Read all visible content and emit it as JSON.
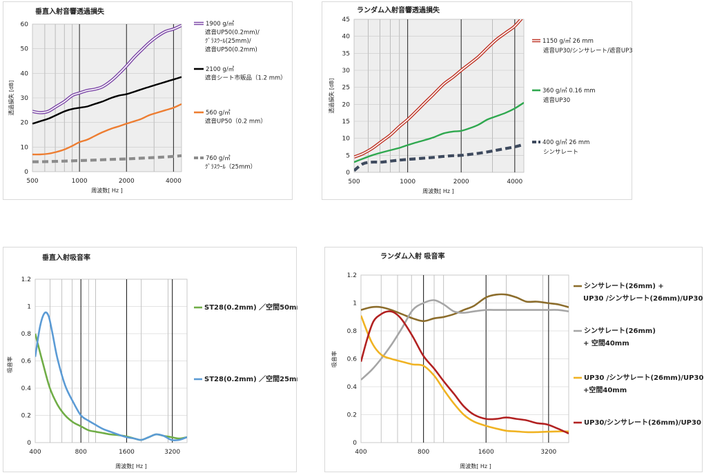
{
  "chart_data": [
    {
      "id": "c1",
      "type": "line",
      "title": "垂直入射音響透過損失",
      "xlabel": "周波数[ Hz ]",
      "ylabel": "透過損失 [dB]",
      "xscale": "log",
      "xlim": [
        500,
        4500
      ],
      "ylim": [
        0,
        60
      ],
      "xticks": [
        500,
        1000,
        2000,
        4000
      ],
      "xtick_labels": [
        "500",
        "1000",
        "2000",
        "4000"
      ],
      "yticks": [
        0,
        10,
        20,
        30,
        40,
        50,
        60
      ],
      "ytick_labels": [
        "0",
        "10",
        "20",
        "30",
        "40",
        "50",
        "60"
      ],
      "grid": true,
      "plot_background": "#eeeeee",
      "legend_position": "right",
      "series": [
        {
          "name": "1900 g/㎡",
          "legend_lines": [
            "1900 g/㎡",
            "遮音UP50(0.2mm)/",
            "ｸﾞﾗｽｳｰﾙ(25mm)/",
            "遮音UP50(0.2mm)"
          ],
          "color": "#7e4aa8",
          "style": "double",
          "x": [
            500,
            560,
            630,
            710,
            800,
            900,
            1000,
            1120,
            1250,
            1400,
            1600,
            1800,
            2000,
            2240,
            2500,
            2800,
            3150,
            3550,
            4000,
            4500
          ],
          "y": [
            24.5,
            24,
            24.5,
            26.5,
            28.5,
            31,
            32,
            33,
            33.5,
            34.5,
            37,
            40,
            43,
            46.5,
            49.5,
            52.5,
            55,
            57,
            58,
            59.5
          ]
        },
        {
          "name": "2100 g/㎡",
          "legend_lines": [
            "2100 g/㎡",
            "遮音シート市販品（1.2 mm）"
          ],
          "color": "#000000",
          "style": "solid",
          "x": [
            500,
            560,
            630,
            710,
            800,
            900,
            1000,
            1120,
            1250,
            1400,
            1600,
            1800,
            2000,
            2240,
            2500,
            2800,
            3150,
            3550,
            4000,
            4500
          ],
          "y": [
            19.5,
            20.5,
            21.5,
            23,
            24.5,
            25.5,
            26,
            26.5,
            27.5,
            28.5,
            30,
            31,
            31.5,
            32.5,
            33.5,
            34.5,
            35.5,
            36.5,
            37.5,
            38.5
          ]
        },
        {
          "name": "560 g/㎡",
          "legend_lines": [
            "560 g/㎡",
            "遮音UP50（0.2 mm）"
          ],
          "color": "#ed7d31",
          "style": "solid",
          "x": [
            500,
            560,
            630,
            710,
            800,
            900,
            1000,
            1120,
            1250,
            1400,
            1600,
            1800,
            2000,
            2240,
            2500,
            2800,
            3150,
            3550,
            4000,
            4500
          ],
          "y": [
            7,
            7,
            7.3,
            8,
            9,
            10.5,
            12,
            13,
            14.5,
            16,
            17.5,
            18.5,
            19.5,
            20.5,
            21.5,
            23,
            24,
            25,
            26,
            27.5
          ]
        },
        {
          "name": "760 g/㎡",
          "legend_lines": [
            "760 g/㎡",
            "ｸﾞﾗｽｳｰﾙ（25mm）"
          ],
          "color": "#8c8c8c",
          "style": "dashed",
          "x": [
            500,
            630,
            800,
            1000,
            1250,
            1600,
            2000,
            2500,
            3150,
            4000,
            4500
          ],
          "y": [
            4,
            4.1,
            4.3,
            4.5,
            4.7,
            5,
            5.2,
            5.5,
            5.8,
            6.2,
            6.5
          ]
        }
      ]
    },
    {
      "id": "c2",
      "type": "line",
      "title": "ランダム入射音響透過損失",
      "xlabel": "周波数[ Hz ]",
      "ylabel": "透過損失 [dB]",
      "xscale": "log",
      "xlim": [
        500,
        4500
      ],
      "ylim": [
        0,
        45
      ],
      "xticks": [
        500,
        1000,
        2000,
        4000
      ],
      "xtick_labels": [
        "500",
        "1000",
        "2000",
        "4000"
      ],
      "yticks": [
        0,
        5,
        10,
        15,
        20,
        25,
        30,
        35,
        40,
        45
      ],
      "ytick_labels": [
        "0",
        "5",
        "10",
        "15",
        "20",
        "25",
        "30",
        "35",
        "40",
        "45"
      ],
      "grid": true,
      "plot_background": "#eeeeee",
      "legend_position": "right",
      "series": [
        {
          "name": "1150  g/㎡  26 mm",
          "legend_lines": [
            "1150  g/㎡  26 mm",
            "遮音UP30/シンサレート/遮音UP30"
          ],
          "color": "#c0392b",
          "style": "double",
          "x": [
            500,
            560,
            630,
            710,
            800,
            900,
            1000,
            1120,
            1250,
            1400,
            1600,
            1800,
            2000,
            2240,
            2500,
            2800,
            3150,
            3550,
            4000,
            4500
          ],
          "y": [
            4.5,
            5.5,
            7,
            9,
            11,
            13.5,
            15.5,
            18,
            20.5,
            23,
            26,
            28,
            30,
            32,
            34,
            36.5,
            39,
            41,
            43,
            46
          ]
        },
        {
          "name": "360 g/㎡  0.16 mm",
          "legend_lines": [
            "360 g/㎡  0.16 mm",
            "遮音UP30"
          ],
          "color": "#2fa84f",
          "style": "solid",
          "x": [
            500,
            560,
            630,
            710,
            800,
            900,
            1000,
            1120,
            1250,
            1400,
            1600,
            1800,
            2000,
            2240,
            2500,
            2800,
            3150,
            3550,
            4000,
            4500
          ],
          "y": [
            3,
            4,
            5,
            5.8,
            6.5,
            7.2,
            8,
            8.8,
            9.5,
            10.3,
            11.5,
            12,
            12.2,
            13,
            14,
            15.5,
            16.5,
            17.5,
            18.8,
            20.5
          ]
        },
        {
          "name": "400  g/㎡  26 mm",
          "legend_lines": [
            "400  g/㎡  26 mm",
            "シンサレート"
          ],
          "color": "#3e4a5e",
          "style": "dashed",
          "x": [
            500,
            560,
            630,
            710,
            800,
            900,
            1000,
            1120,
            1250,
            1400,
            1600,
            1800,
            2000,
            2240,
            2500,
            2800,
            3150,
            3550,
            4000,
            4500
          ],
          "y": [
            0.5,
            2.5,
            3,
            3,
            3.3,
            3.6,
            3.8,
            4,
            4.2,
            4.4,
            4.7,
            4.9,
            5,
            5.3,
            5.6,
            6,
            6.5,
            7,
            7.5,
            8.2
          ]
        }
      ]
    },
    {
      "id": "c3",
      "type": "line",
      "title": "垂直入射吸音率",
      "xlabel": "周波数[ Hz ]",
      "ylabel": "吸音率",
      "xscale": "log",
      "xlim": [
        400,
        4000
      ],
      "ylim": [
        0,
        1.2
      ],
      "xticks": [
        400,
        800,
        1600,
        3200
      ],
      "xtick_labels": [
        "400",
        "800",
        "1600",
        "3200"
      ],
      "yticks": [
        0,
        0.2,
        0.4,
        0.6,
        0.8,
        1,
        1.2
      ],
      "ytick_labels": [
        "0",
        "0.2",
        "0.4",
        "0.6",
        "0.8",
        "1",
        "1.2"
      ],
      "grid": true,
      "plot_background": "#ffffff",
      "legend_position": "right",
      "series": [
        {
          "name": "ST28(0.2mm) ／空間50mm",
          "legend_lines": [
            "ST28(0.2mm) ／空間50mm"
          ],
          "color": "#70ad47",
          "style": "solid",
          "x": [
            400,
            450,
            500,
            560,
            630,
            710,
            800,
            900,
            1000,
            1120,
            1250,
            1400,
            1600,
            1800,
            2000,
            2240,
            2500,
            2800,
            3150,
            3550,
            4000
          ],
          "y": [
            0.8,
            0.58,
            0.4,
            0.28,
            0.2,
            0.15,
            0.12,
            0.09,
            0.08,
            0.07,
            0.06,
            0.055,
            0.045,
            0.03,
            0.02,
            0.04,
            0.06,
            0.05,
            0.04,
            0.03,
            0.04
          ]
        },
        {
          "name": "ST28(0.2mm) ／空間25mm",
          "legend_lines": [
            "ST28(0.2mm) ／空間25mm"
          ],
          "color": "#5b9bd5",
          "style": "solid",
          "x": [
            400,
            430,
            460,
            490,
            520,
            560,
            630,
            710,
            800,
            900,
            1000,
            1120,
            1250,
            1400,
            1600,
            1800,
            2000,
            2240,
            2500,
            2800,
            3150,
            3550,
            4000
          ],
          "y": [
            0.63,
            0.85,
            0.95,
            0.93,
            0.8,
            0.62,
            0.42,
            0.3,
            0.2,
            0.16,
            0.13,
            0.1,
            0.08,
            0.06,
            0.04,
            0.03,
            0.02,
            0.04,
            0.06,
            0.05,
            0.02,
            0.02,
            0.04
          ]
        }
      ]
    },
    {
      "id": "c4",
      "type": "line",
      "title": "ランダム入射   吸音率",
      "xlabel": "周波数[ Hz ]",
      "ylabel": "吸音率",
      "xscale": "log",
      "xlim": [
        400,
        4000
      ],
      "ylim": [
        0,
        1.2
      ],
      "xticks": [
        400,
        800,
        1600,
        3200
      ],
      "xtick_labels": [
        "400",
        "800",
        "1600",
        "3200"
      ],
      "yticks": [
        0,
        0.2,
        0.4,
        0.6,
        0.8,
        1,
        1.2
      ],
      "ytick_labels": [
        "0",
        "0.2",
        "0.4",
        "0.6",
        "0.8",
        "1",
        "1.2"
      ],
      "grid": true,
      "plot_background": "#ffffff",
      "legend_position": "right",
      "series": [
        {
          "name": "シンサレート(26mm) +UP30 /シンサレート(26mm)/UP30",
          "legend_lines": [
            "シンサレート(26mm) +",
            "UP30 /シンサレート(26mm)/UP30"
          ],
          "color": "#8c6d2c",
          "style": "solid",
          "x": [
            400,
            450,
            500,
            560,
            630,
            710,
            800,
            900,
            1000,
            1120,
            1250,
            1400,
            1600,
            1800,
            2000,
            2240,
            2500,
            2800,
            3150,
            3550,
            4000
          ],
          "y": [
            0.95,
            0.97,
            0.97,
            0.95,
            0.92,
            0.89,
            0.87,
            0.89,
            0.9,
            0.92,
            0.95,
            0.98,
            1.04,
            1.06,
            1.06,
            1.04,
            1.01,
            1.01,
            1.0,
            0.99,
            0.97
          ]
        },
        {
          "name": "シンサレート(26mm)+ 空間40mm",
          "legend_lines": [
            "シンサレート(26mm)",
            "+ 空間40mm"
          ],
          "color": "#a6a6a6",
          "style": "solid",
          "x": [
            400,
            450,
            500,
            560,
            630,
            710,
            800,
            900,
            1000,
            1120,
            1250,
            1400,
            1600,
            1800,
            2000,
            2240,
            2500,
            2800,
            3150,
            3550,
            4000
          ],
          "y": [
            0.45,
            0.52,
            0.6,
            0.7,
            0.82,
            0.95,
            1.0,
            1.02,
            0.99,
            0.94,
            0.93,
            0.94,
            0.95,
            0.95,
            0.95,
            0.95,
            0.95,
            0.95,
            0.95,
            0.95,
            0.94
          ]
        },
        {
          "name": "UP30 /シンサレート(26mm)/UP30+空間40mm",
          "legend_lines": [
            "UP30 /シンサレート(26mm)/UP30",
            "+空間40mm"
          ],
          "color": "#f0b323",
          "style": "solid",
          "x": [
            400,
            450,
            500,
            560,
            630,
            710,
            800,
            900,
            1000,
            1120,
            1250,
            1400,
            1600,
            1800,
            2000,
            2240,
            2500,
            2800,
            3150,
            3550,
            4000
          ],
          "y": [
            0.91,
            0.72,
            0.63,
            0.6,
            0.58,
            0.56,
            0.55,
            0.48,
            0.38,
            0.28,
            0.2,
            0.15,
            0.12,
            0.1,
            0.085,
            0.08,
            0.075,
            0.075,
            0.078,
            0.08,
            0.08
          ]
        },
        {
          "name": "UP30/シンサレート(26mm)/UP30",
          "legend_lines": [
            "UP30/シンサレート(26mm)/UP30"
          ],
          "color": "#b22222",
          "style": "solid",
          "x": [
            400,
            430,
            460,
            500,
            540,
            580,
            630,
            710,
            800,
            900,
            1000,
            1120,
            1250,
            1400,
            1600,
            1800,
            2000,
            2240,
            2500,
            2800,
            3150,
            3550,
            4000
          ],
          "y": [
            0.58,
            0.75,
            0.87,
            0.92,
            0.94,
            0.93,
            0.88,
            0.76,
            0.62,
            0.53,
            0.44,
            0.35,
            0.26,
            0.2,
            0.17,
            0.17,
            0.18,
            0.17,
            0.16,
            0.14,
            0.13,
            0.1,
            0.065
          ]
        }
      ]
    }
  ]
}
